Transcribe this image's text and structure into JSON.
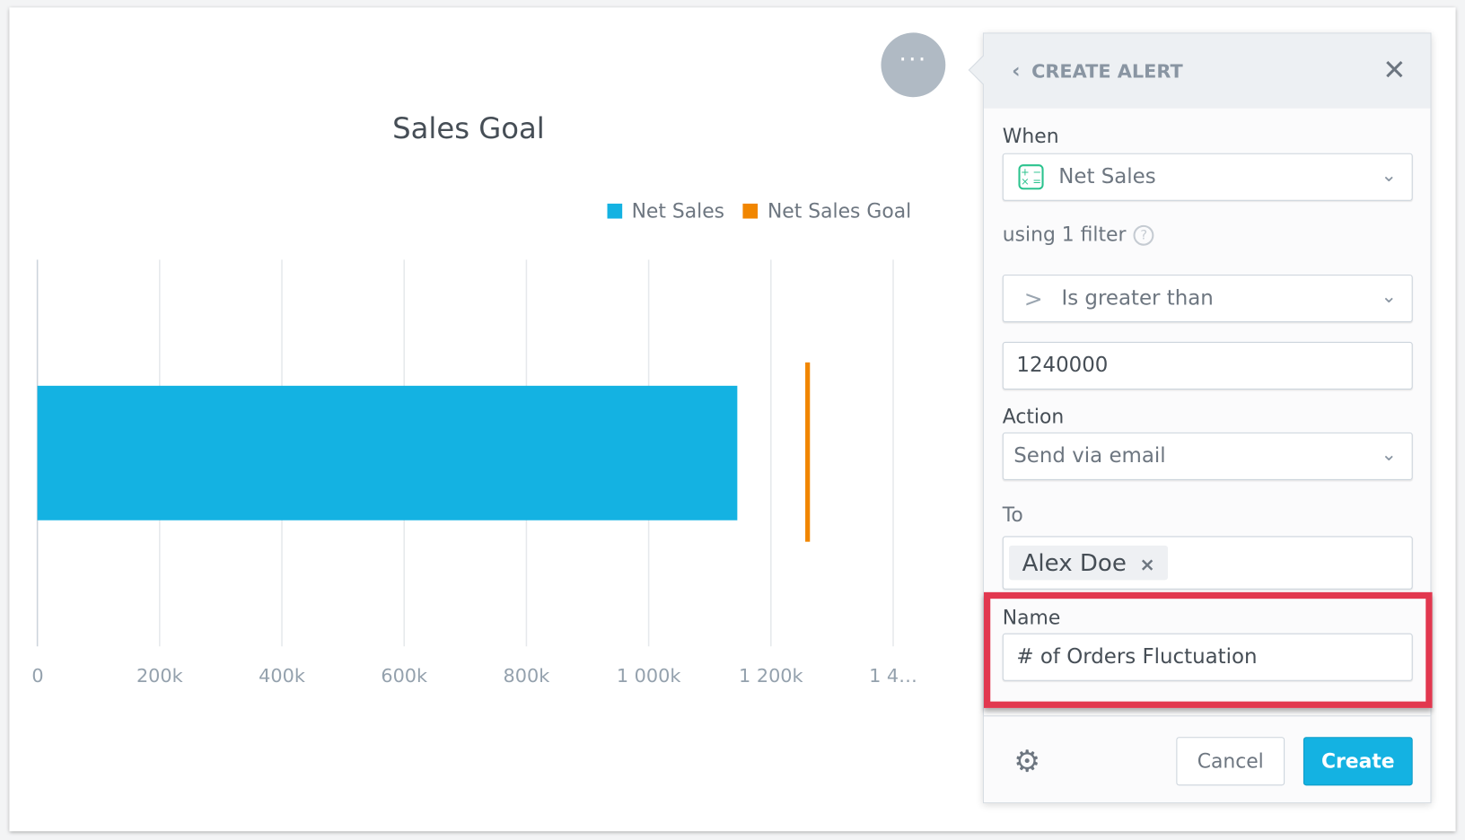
{
  "chart_data": {
    "type": "bar",
    "orientation": "horizontal",
    "title": "Sales Goal",
    "series": [
      {
        "name": "Net Sales",
        "values": [
          1145000
        ],
        "color": "#14b2e2"
      },
      {
        "name": "Net Sales Goal",
        "values": [
          1260000
        ],
        "color": "#f18600",
        "mark": "target-line"
      }
    ],
    "xlim": [
      0,
      1400000
    ],
    "tick_labels": [
      "0",
      "200k",
      "400k",
      "600k",
      "800k",
      "1 000k",
      "1 200k",
      "1 4…"
    ],
    "grid": true,
    "legend": "top-right"
  },
  "menu_label": "···",
  "panel": {
    "title": "CREATE ALERT",
    "back_icon": "chevron-left",
    "close_icon": "close",
    "when_label": "When",
    "metric": "Net Sales",
    "filter_text": "using 1 filter",
    "help": "?",
    "condition": "Is greater than",
    "condition_symbol": ">",
    "threshold": "1240000",
    "action_label": "Action",
    "action": "Send via email",
    "to_label": "To",
    "recipient": "Alex Doe",
    "remove": "×",
    "name_label": "Name",
    "name_value": "# of Orders Fluctuation",
    "cancel": "Cancel",
    "create": "Create",
    "highlight_color": "#e2384f",
    "accent": "#14b2e2"
  }
}
